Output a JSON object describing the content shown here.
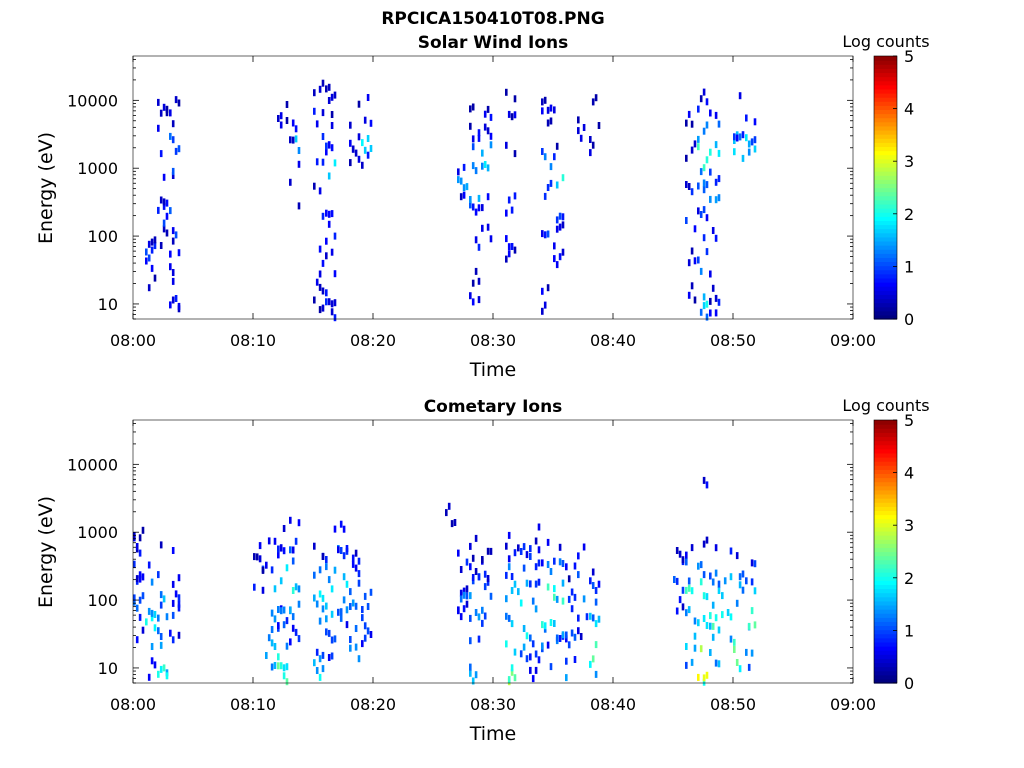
{
  "figure": {
    "title": "RPCICA150410T08.PNG"
  },
  "chart_data": [
    {
      "type": "heatmap",
      "title": "Solar Wind Ions",
      "xlabel": "Time",
      "ylabel": "Energy (eV)",
      "x_ticks": [
        "08:00",
        "08:10",
        "08:20",
        "08:30",
        "08:40",
        "08:50",
        "09:00"
      ],
      "xlim": [
        "08:00",
        "09:00"
      ],
      "y_ticks": [
        "10",
        "100",
        "1000",
        "10000"
      ],
      "ylim": [
        6,
        45000
      ],
      "y_scale": "log",
      "colorbar": {
        "label": "Log counts",
        "ticks": [
          "0",
          "1",
          "2",
          "3",
          "4",
          "5"
        ],
        "range": [
          0,
          5
        ],
        "colormap": "jet"
      },
      "cells": [
        {
          "t": "08:01",
          "e": [
            20,
            30,
            50,
            60
          ],
          "v": [
            0.3,
            0.4,
            0.8,
            0.5
          ]
        },
        {
          "t": "08:02",
          "e": [
            100,
            150,
            200,
            400,
            600,
            1500,
            2500,
            5000,
            9000
          ],
          "v": [
            0.5,
            0.8,
            0.6,
            0.4,
            0.3,
            0.6,
            0.5,
            0.3,
            0.2
          ]
        },
        {
          "t": "08:03",
          "e": [
            7,
            12,
            20,
            40,
            80,
            150,
            300,
            600,
            1200,
            2000,
            4000,
            8000
          ],
          "v": [
            0.5,
            0.6,
            0.5,
            0.4,
            0.6,
            0.8,
            1.0,
            0.6,
            0.8,
            1.0,
            0.5,
            0.3
          ]
        },
        {
          "t": "08:12",
          "e": [
            5000,
            6000
          ],
          "v": [
            0.3,
            0.3
          ]
        },
        {
          "t": "08:13",
          "e": [
            300,
            800,
            2000,
            3000,
            5000
          ],
          "v": [
            0.3,
            0.4,
            1.6,
            0.4,
            0.3
          ]
        },
        {
          "t": "08:15",
          "e": [
            8,
            15,
            30,
            80,
            200,
            500,
            1000,
            2500,
            6000,
            12000
          ],
          "v": [
            0.3,
            0.4,
            0.5,
            0.4,
            0.6,
            0.5,
            0.6,
            0.8,
            0.5,
            0.4
          ]
        },
        {
          "t": "08:16",
          "e": [
            8,
            15,
            40,
            120,
            300,
            800,
            1500,
            3000,
            8000,
            14000
          ],
          "v": [
            0.6,
            0.5,
            0.4,
            0.8,
            0.6,
            1.6,
            0.8,
            0.6,
            0.5,
            0.3
          ]
        },
        {
          "t": "08:18",
          "e": [
            1500,
            2000,
            6000
          ],
          "v": [
            0.4,
            0.4,
            0.3
          ]
        },
        {
          "t": "08:19",
          "e": [
            1500,
            2000,
            6000,
            9000
          ],
          "v": [
            0.6,
            1.7,
            0.5,
            0.3
          ]
        },
        {
          "t": "08:27",
          "e": [
            400,
            600,
            1000
          ],
          "v": [
            0.5,
            1.4,
            0.5
          ]
        },
        {
          "t": "08:28",
          "e": [
            8,
            12,
            30,
            80,
            200,
            500,
            1000,
            2000,
            4000,
            8000
          ],
          "v": [
            0.5,
            0.5,
            0.4,
            0.6,
            0.8,
            1.4,
            1.0,
            0.8,
            0.5,
            0.3
          ]
        },
        {
          "t": "08:29",
          "e": [
            40,
            100,
            300,
            800,
            1500,
            3000,
            6000,
            12000
          ],
          "v": [
            0.4,
            0.6,
            0.5,
            1.0,
            1.6,
            0.6,
            0.4,
            0.3
          ]
        },
        {
          "t": "08:31",
          "e": [
            60,
            100,
            300,
            800,
            2000,
            5000,
            9000
          ],
          "v": [
            0.5,
            0.7,
            0.5,
            0.6,
            0.4,
            0.3,
            0.3
          ]
        },
        {
          "t": "08:34",
          "e": [
            8,
            12,
            50,
            150,
            400,
            1000,
            2500,
            6000,
            9000
          ],
          "v": [
            0.4,
            0.5,
            0.6,
            0.8,
            1.0,
            1.4,
            0.6,
            0.4,
            0.3
          ]
        },
        {
          "t": "08:35",
          "e": [
            40,
            100,
            250,
            600,
            1500,
            3000,
            8000
          ],
          "v": [
            0.5,
            0.6,
            0.7,
            1.8,
            0.6,
            0.4,
            0.3
          ]
        },
        {
          "t": "08:37",
          "e": [
            3000,
            5000
          ],
          "v": [
            0.3,
            0.3
          ]
        },
        {
          "t": "08:38",
          "e": [
            1500,
            3000,
            9000
          ],
          "v": [
            0.4,
            0.3,
            0.3
          ]
        },
        {
          "t": "08:46",
          "e": [
            15,
            60,
            150,
            400,
            800,
            2000,
            6000
          ],
          "v": [
            0.4,
            0.5,
            0.8,
            0.6,
            0.5,
            0.4,
            0.3
          ]
        },
        {
          "t": "08:47",
          "e": [
            7,
            10,
            20,
            40,
            80,
            200,
            400,
            800,
            1500,
            3000,
            6000,
            10000
          ],
          "v": [
            1.4,
            1.8,
            1.2,
            1.0,
            0.8,
            0.7,
            0.9,
            1.2,
            2.2,
            1.4,
            1.0,
            0.4
          ]
        },
        {
          "t": "08:48",
          "e": [
            8,
            15,
            40,
            100,
            300,
            600,
            1500,
            3000,
            6000
          ],
          "v": [
            0.7,
            0.5,
            0.6,
            0.7,
            1.5,
            0.8,
            1.8,
            1.0,
            0.4
          ]
        },
        {
          "t": "08:50",
          "e": [
            2000,
            2500,
            4000,
            9000
          ],
          "v": [
            1.4,
            1.8,
            0.6,
            0.3
          ]
        },
        {
          "t": "08:51",
          "e": [
            1800,
            2500,
            4000
          ],
          "v": [
            1.2,
            1.6,
            0.5
          ]
        }
      ]
    },
    {
      "type": "heatmap",
      "title": "Cometary Ions",
      "xlabel": "Time",
      "ylabel": "Energy (eV)",
      "x_ticks": [
        "08:00",
        "08:10",
        "08:20",
        "08:30",
        "08:40",
        "08:50",
        "09:00"
      ],
      "xlim": [
        "08:00",
        "09:00"
      ],
      "y_ticks": [
        "10",
        "100",
        "1000",
        "10000"
      ],
      "ylim": [
        6,
        45000
      ],
      "y_scale": "log",
      "colorbar": {
        "label": "Log counts",
        "ticks": [
          "0",
          "1",
          "2",
          "3",
          "4",
          "5"
        ],
        "range": [
          0,
          5
        ],
        "colormap": "jet"
      },
      "cells": [
        {
          "t": "08:00",
          "e": [
            30,
            50,
            80,
            150,
            300,
            600,
            900
          ],
          "v": [
            0.6,
            0.5,
            1.0,
            0.8,
            0.6,
            0.5,
            0.4
          ]
        },
        {
          "t": "08:01",
          "e": [
            10,
            20,
            40,
            80,
            150,
            300,
            500
          ],
          "v": [
            0.8,
            1.2,
            1.8,
            1.4,
            1.0,
            0.6,
            0.4
          ]
        },
        {
          "t": "08:02",
          "e": [
            7,
            10,
            20,
            40,
            80,
            150,
            300,
            500
          ],
          "v": [
            1.6,
            2.0,
            1.4,
            1.0,
            1.2,
            1.4,
            0.8,
            0.5
          ]
        },
        {
          "t": "08:03",
          "e": [
            30,
            60,
            100,
            150,
            250,
            400
          ],
          "v": [
            0.6,
            0.8,
            0.6,
            0.8,
            0.5,
            0.4
          ]
        },
        {
          "t": "08:10",
          "e": [
            150,
            200,
            300,
            500
          ],
          "v": [
            0.5,
            0.8,
            0.4,
            0.3
          ]
        },
        {
          "t": "08:11",
          "e": [
            10,
            20,
            40,
            80,
            150,
            300,
            600
          ],
          "v": [
            1.4,
            1.6,
            1.2,
            1.0,
            1.4,
            0.8,
            0.4
          ]
        },
        {
          "t": "08:12",
          "e": [
            8,
            15,
            30,
            60,
            100,
            200,
            400,
            800
          ],
          "v": [
            2.2,
            1.8,
            1.0,
            0.8,
            1.2,
            1.6,
            0.8,
            0.5
          ]
        },
        {
          "t": "08:13",
          "e": [
            30,
            60,
            100,
            200,
            400,
            800,
            1200
          ],
          "v": [
            0.8,
            1.2,
            1.4,
            1.8,
            0.8,
            0.6,
            0.4
          ]
        },
        {
          "t": "08:15",
          "e": [
            7,
            10,
            20,
            40,
            80,
            150,
            300,
            600
          ],
          "v": [
            1.8,
            1.4,
            0.8,
            1.0,
            1.4,
            2.0,
            1.0,
            0.5
          ]
        },
        {
          "t": "08:16",
          "e": [
            15,
            30,
            60,
            120,
            250,
            500,
            900
          ],
          "v": [
            0.8,
            1.0,
            1.4,
            1.8,
            1.2,
            0.8,
            0.5
          ]
        },
        {
          "t": "08:17",
          "e": [
            30,
            60,
            100,
            200,
            400,
            800,
            1200
          ],
          "v": [
            0.6,
            1.0,
            1.4,
            1.6,
            1.0,
            0.6,
            0.4
          ]
        },
        {
          "t": "08:18",
          "e": [
            8,
            15,
            30,
            60,
            120,
            250,
            400
          ],
          "v": [
            1.8,
            1.4,
            1.0,
            0.8,
            1.2,
            0.8,
            0.5
          ]
        },
        {
          "t": "08:19",
          "e": [
            30,
            60,
            100,
            200
          ],
          "v": [
            0.8,
            1.0,
            0.8,
            0.5
          ]
        },
        {
          "t": "08:26",
          "e": [
            2000
          ],
          "v": [
            0.3
          ]
        },
        {
          "t": "08:27",
          "e": [
            60,
            100,
            150,
            300,
            500
          ],
          "v": [
            0.5,
            0.6,
            1.0,
            0.6,
            0.4
          ]
        },
        {
          "t": "08:28",
          "e": [
            7,
            10,
            20,
            40,
            80,
            150,
            300,
            600
          ],
          "v": [
            1.4,
            1.2,
            0.8,
            1.0,
            1.4,
            1.2,
            0.6,
            0.4
          ]
        },
        {
          "t": "08:29",
          "e": [
            40,
            80,
            150,
            300,
            500
          ],
          "v": [
            0.8,
            1.2,
            1.0,
            0.6,
            0.4
          ]
        },
        {
          "t": "08:31",
          "e": [
            7,
            10,
            20,
            40,
            80,
            150,
            300,
            600,
            900
          ],
          "v": [
            2.6,
            2.2,
            1.8,
            1.4,
            2.0,
            1.6,
            1.0,
            0.6,
            0.4
          ]
        },
        {
          "t": "08:32",
          "e": [
            15,
            30,
            60,
            120,
            250,
            500
          ],
          "v": [
            1.2,
            1.8,
            2.2,
            1.6,
            1.0,
            0.6
          ]
        },
        {
          "t": "08:33",
          "e": [
            10,
            20,
            40,
            80,
            150,
            300,
            500,
            800
          ],
          "v": [
            0.6,
            1.0,
            1.2,
            1.4,
            1.0,
            0.8,
            0.6,
            0.4
          ]
        },
        {
          "t": "08:34",
          "e": [
            15,
            30,
            60,
            120,
            250,
            500
          ],
          "v": [
            0.8,
            1.4,
            1.8,
            2.0,
            1.2,
            0.6
          ]
        },
        {
          "t": "08:35",
          "e": [
            20,
            40,
            80,
            150,
            300,
            600
          ],
          "v": [
            1.0,
            1.4,
            2.0,
            1.6,
            1.0,
            0.5
          ]
        },
        {
          "t": "08:36",
          "e": [
            7,
            10,
            20,
            40,
            80,
            150,
            300
          ],
          "v": [
            1.4,
            1.0,
            0.8,
            1.2,
            1.0,
            0.8,
            0.5
          ]
        },
        {
          "t": "08:37",
          "e": [
            40,
            80,
            150,
            300,
            500
          ],
          "v": [
            0.6,
            1.0,
            1.2,
            0.8,
            0.5
          ]
        },
        {
          "t": "08:38",
          "e": [
            8,
            20,
            40,
            80,
            150,
            250
          ],
          "v": [
            1.6,
            2.2,
            1.6,
            1.2,
            0.8,
            0.5
          ]
        },
        {
          "t": "08:45",
          "e": [
            80,
            150,
            250,
            400
          ],
          "v": [
            0.6,
            1.2,
            1.0,
            0.5
          ]
        },
        {
          "t": "08:46",
          "e": [
            15,
            30,
            60,
            120,
            250,
            400
          ],
          "v": [
            1.2,
            1.6,
            1.4,
            2.0,
            1.0,
            0.6
          ]
        },
        {
          "t": "08:47",
          "e": [
            7,
            10,
            20,
            40,
            80,
            150,
            300,
            600,
            4000
          ],
          "v": [
            2.2,
            3.0,
            2.6,
            1.8,
            1.6,
            2.0,
            1.2,
            0.6,
            0.5
          ]
        },
        {
          "t": "08:48",
          "e": [
            15,
            30,
            60,
            120,
            250,
            500
          ],
          "v": [
            1.4,
            1.8,
            2.2,
            1.6,
            1.2,
            0.6
          ]
        },
        {
          "t": "08:49",
          "e": [
            20,
            40,
            80,
            150,
            300,
            500
          ],
          "v": [
            1.0,
            1.4,
            1.8,
            1.4,
            0.8,
            0.5
          ]
        },
        {
          "t": "08:50",
          "e": [
            8,
            15,
            30,
            60,
            120,
            250,
            400
          ],
          "v": [
            1.6,
            2.4,
            2.0,
            1.6,
            1.4,
            1.0,
            0.6
          ]
        },
        {
          "t": "08:51",
          "e": [
            15,
            30,
            60,
            120,
            250,
            500
          ],
          "v": [
            1.2,
            1.6,
            2.4,
            1.8,
            1.0,
            0.5
          ]
        }
      ]
    }
  ]
}
